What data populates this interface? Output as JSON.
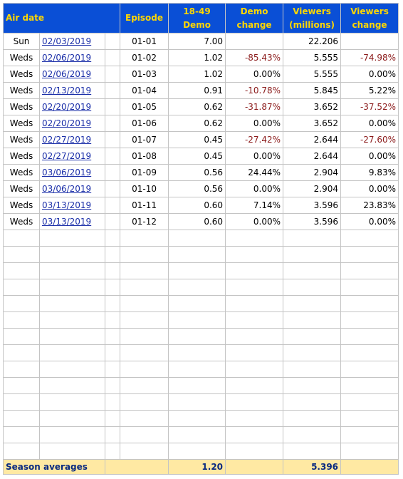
{
  "header": {
    "air_date": "Air date",
    "episode": "Episode",
    "demo": "18-49 Demo",
    "demo_change": "Demo change",
    "viewers": "Viewers (millions)",
    "viewers_change": "Viewers change"
  },
  "rows": [
    {
      "day": "Sun",
      "date": "02/03/2019",
      "episode": "01-01",
      "demo": "7.00",
      "viewers": "22.206"
    },
    {
      "day": "Weds",
      "date": "02/06/2019",
      "episode": "01-02",
      "demo": "1.02",
      "demo_change": "-85.43%",
      "viewers": "5.555",
      "viewers_change": "-74.98%"
    },
    {
      "day": "Weds",
      "date": "02/06/2019",
      "episode": "01-03",
      "demo": "1.02",
      "demo_change": "0.00%",
      "viewers": "5.555",
      "viewers_change": "0.00%"
    },
    {
      "day": "Weds",
      "date": "02/13/2019",
      "episode": "01-04",
      "demo": "0.91",
      "demo_change": "-10.78%",
      "viewers": "5.845",
      "viewers_change": "5.22%"
    },
    {
      "day": "Weds",
      "date": "02/20/2019",
      "episode": "01-05",
      "demo": "0.62",
      "demo_change": "-31.87%",
      "viewers": "3.652",
      "viewers_change": "-37.52%"
    },
    {
      "day": "Weds",
      "date": "02/20/2019",
      "episode": "01-06",
      "demo": "0.62",
      "demo_change": "0.00%",
      "viewers": "3.652",
      "viewers_change": "0.00%"
    },
    {
      "day": "Weds",
      "date": "02/27/2019",
      "episode": "01-07",
      "demo": "0.45",
      "demo_change": "-27.42%",
      "viewers": "2.644",
      "viewers_change": "-27.60%"
    },
    {
      "day": "Weds",
      "date": "02/27/2019",
      "episode": "01-08",
      "demo": "0.45",
      "demo_change": "0.00%",
      "viewers": "2.644",
      "viewers_change": "0.00%"
    },
    {
      "day": "Weds",
      "date": "03/06/2019",
      "episode": "01-09",
      "demo": "0.56",
      "demo_change": "24.44%",
      "viewers": "2.904",
      "viewers_change": "9.83%"
    },
    {
      "day": "Weds",
      "date": "03/06/2019",
      "episode": "01-10",
      "demo": "0.56",
      "demo_change": "0.00%",
      "viewers": "2.904",
      "viewers_change": "0.00%"
    },
    {
      "day": "Weds",
      "date": "03/13/2019",
      "episode": "01-11",
      "demo": "0.60",
      "demo_change": "7.14%",
      "viewers": "3.596",
      "viewers_change": "23.83%"
    },
    {
      "day": "Weds",
      "date": "03/13/2019",
      "episode": "01-12",
      "demo": "0.60",
      "demo_change": "0.00%",
      "viewers": "3.596",
      "viewers_change": "0.00%"
    }
  ],
  "footer": {
    "label": "Season averages",
    "demo": "1.20",
    "viewers": "5.396"
  }
}
